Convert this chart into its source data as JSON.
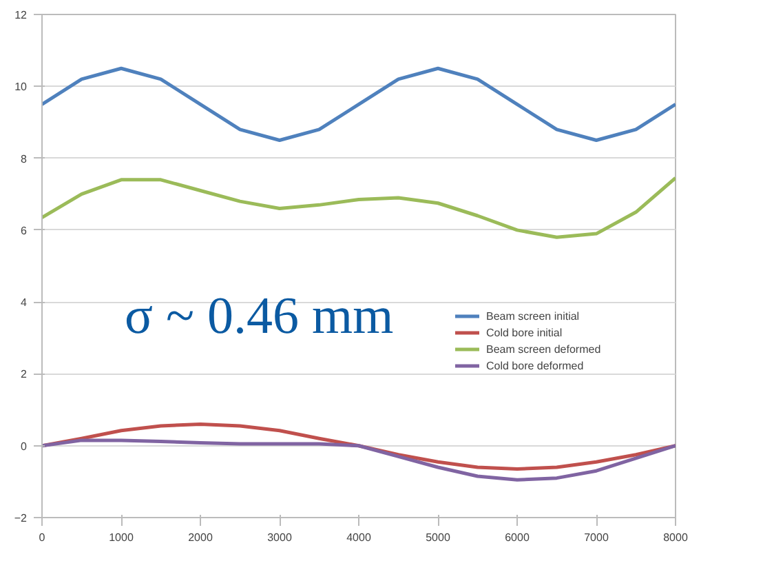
{
  "chart_data": {
    "type": "line",
    "x": [
      0,
      500,
      1000,
      1500,
      2000,
      2500,
      3000,
      3500,
      4000,
      4500,
      5000,
      5500,
      6000,
      6500,
      7000,
      7500,
      8000
    ],
    "series": [
      {
        "name": "Beam screen initial",
        "color": "#4f81bd",
        "values": [
          9.5,
          10.2,
          10.5,
          10.2,
          9.5,
          8.8,
          8.5,
          8.8,
          9.5,
          10.2,
          10.5,
          10.2,
          9.5,
          8.8,
          8.5,
          8.8,
          9.5
        ]
      },
      {
        "name": "Cold bore initial",
        "color": "#c0504d",
        "values": [
          0,
          0.2,
          0.42,
          0.55,
          0.6,
          0.55,
          0.42,
          0.2,
          0,
          -0.25,
          -0.45,
          -0.6,
          -0.65,
          -0.6,
          -0.45,
          -0.25,
          0
        ]
      },
      {
        "name": "Beam screen deformed",
        "color": "#9bbb59",
        "values": [
          6.35,
          7.0,
          7.4,
          7.4,
          7.1,
          6.8,
          6.6,
          6.7,
          6.85,
          6.9,
          6.75,
          6.4,
          6.0,
          5.8,
          5.9,
          6.5,
          7.45
        ]
      },
      {
        "name": "Cold bore deformed",
        "color": "#8064a2",
        "values": [
          0,
          0.15,
          0.15,
          0.12,
          0.08,
          0.05,
          0.05,
          0.05,
          0,
          -0.3,
          -0.6,
          -0.85,
          -0.95,
          -0.9,
          -0.7,
          -0.35,
          0
        ]
      }
    ],
    "xlim": [
      0,
      8000
    ],
    "xticks": [
      0,
      1000,
      2000,
      3000,
      4000,
      5000,
      6000,
      7000,
      8000
    ],
    "ylim": [
      -2,
      12
    ],
    "yticks": [
      -2,
      0,
      2,
      4,
      6,
      8,
      10,
      12
    ],
    "grid": "y",
    "legend": "right",
    "marker": "none",
    "line_style": "solid",
    "annotations": [
      "σ ~ 0.46 mm"
    ]
  }
}
